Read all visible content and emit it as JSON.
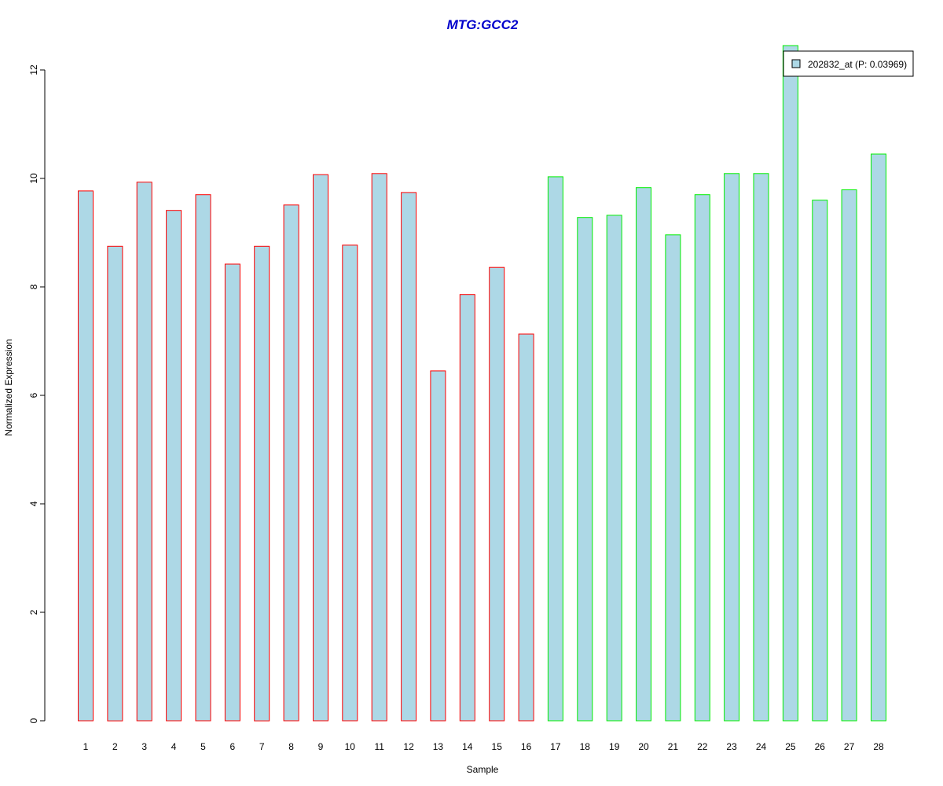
{
  "chart_data": {
    "type": "bar",
    "title": "MTG:GCC2",
    "xlabel": "Sample",
    "ylabel": "Normalized Expression",
    "ylim": [
      0,
      12.35
    ],
    "yticks": [
      0,
      2,
      4,
      6,
      8,
      10,
      12
    ],
    "categories": [
      "1",
      "2",
      "3",
      "4",
      "5",
      "6",
      "7",
      "8",
      "9",
      "10",
      "11",
      "12",
      "13",
      "14",
      "15",
      "16",
      "17",
      "18",
      "19",
      "20",
      "21",
      "22",
      "23",
      "24",
      "25",
      "26",
      "27",
      "28"
    ],
    "series": [
      {
        "name": "202832_at (P: 0.03969)",
        "values": [
          9.77,
          8.75,
          9.93,
          9.41,
          9.7,
          8.42,
          8.75,
          9.51,
          10.07,
          8.77,
          10.09,
          9.74,
          6.45,
          7.86,
          8.36,
          7.13,
          10.03,
          9.28,
          9.32,
          9.83,
          8.96,
          9.7,
          10.09,
          10.09,
          12.45,
          9.6,
          9.79,
          10.45
        ]
      }
    ],
    "group_border_colors": [
      "#ff0000",
      "#ff0000",
      "#ff0000",
      "#ff0000",
      "#ff0000",
      "#ff0000",
      "#ff0000",
      "#ff0000",
      "#ff0000",
      "#ff0000",
      "#ff0000",
      "#ff0000",
      "#ff0000",
      "#ff0000",
      "#ff0000",
      "#ff0000",
      "#00ee00",
      "#00ee00",
      "#00ee00",
      "#00ee00",
      "#00ee00",
      "#00ee00",
      "#00ee00",
      "#00ee00",
      "#00ee00",
      "#00ee00",
      "#00ee00",
      "#00ee00"
    ],
    "bar_fill": "#add8e6",
    "title_color": "#0000cc",
    "legend_position": "top-right",
    "grid": false
  }
}
